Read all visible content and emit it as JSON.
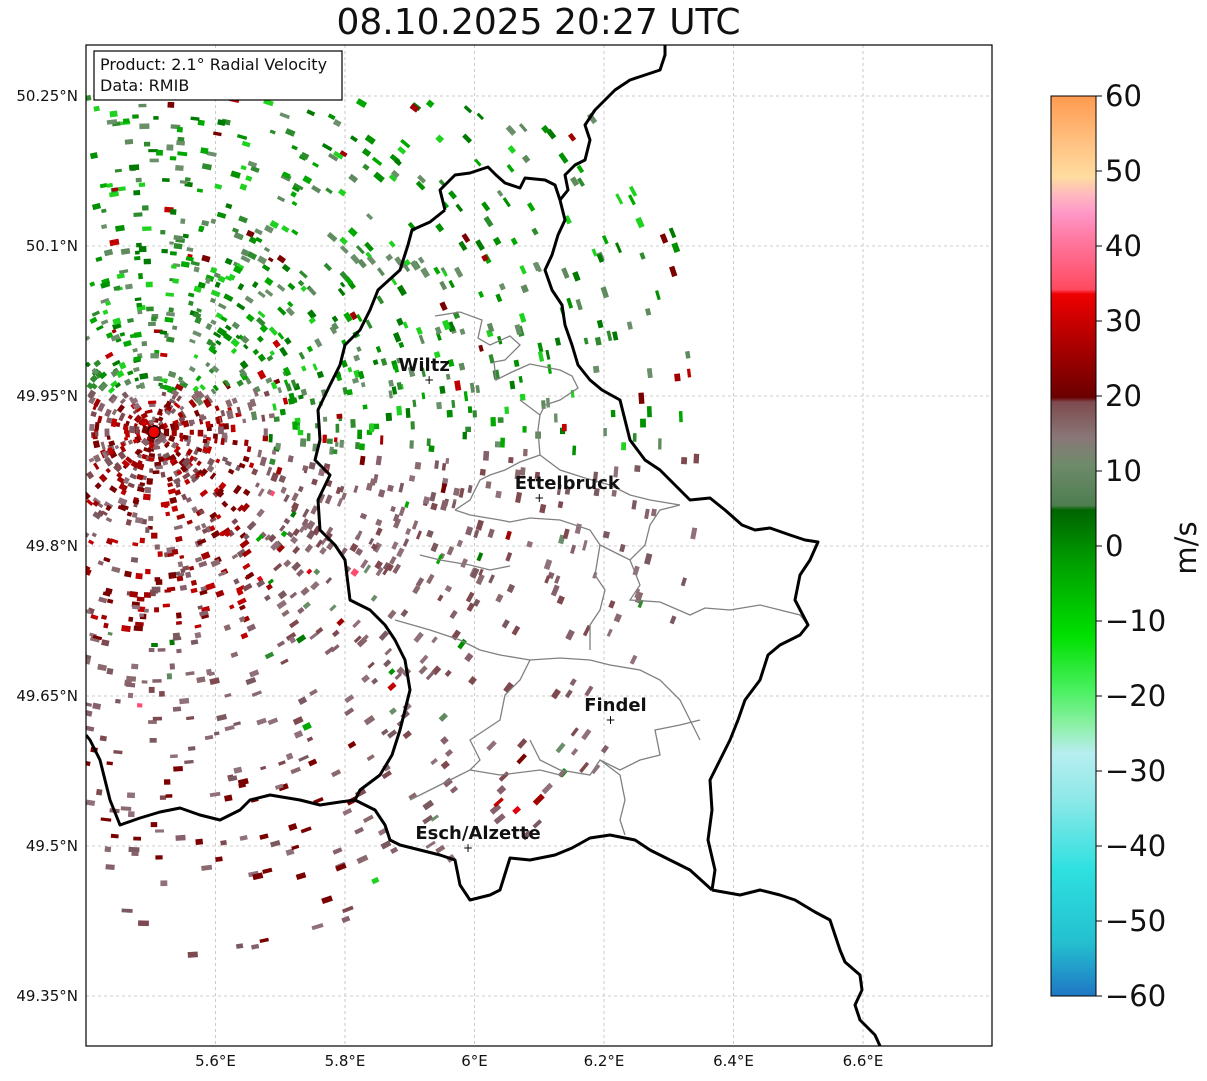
{
  "title": "08.10.2025 20:27 UTC",
  "info_box": {
    "product": "Product: 2.1° Radial Velocity",
    "data": "Data: RMIB"
  },
  "lat_ticks": [
    "50.25°N",
    "50.1°N",
    "49.95°N",
    "49.8°N",
    "49.65°N",
    "49.5°N",
    "49.35°N"
  ],
  "lon_ticks": [
    "5.6°E",
    "5.8°E",
    "6°E",
    "6.2°E",
    "6.4°E",
    "6.6°E"
  ],
  "cities": [
    {
      "name": "Wiltz",
      "lon": 5.93,
      "lat": 49.966
    },
    {
      "name": "Ettelbruck",
      "lon": 6.1,
      "lat": 49.848
    },
    {
      "name": "Findel",
      "lon": 6.21,
      "lat": 49.626
    },
    {
      "name": "Esch/Alzette",
      "lon": 5.99,
      "lat": 49.498
    }
  ],
  "radar_site": {
    "lon": 5.505,
    "lat": 49.914
  },
  "colorbar": {
    "label": "m/s",
    "min": -60,
    "max": 60,
    "ticks": [
      "60",
      "50",
      "40",
      "30",
      "20",
      "10",
      "0",
      "−10",
      "−20",
      "−30",
      "−40",
      "−50",
      "−60"
    ]
  },
  "colors": {
    "border_national": "#000000",
    "border_cantonal": "#808080",
    "radar_site": "#ee0000"
  }
}
